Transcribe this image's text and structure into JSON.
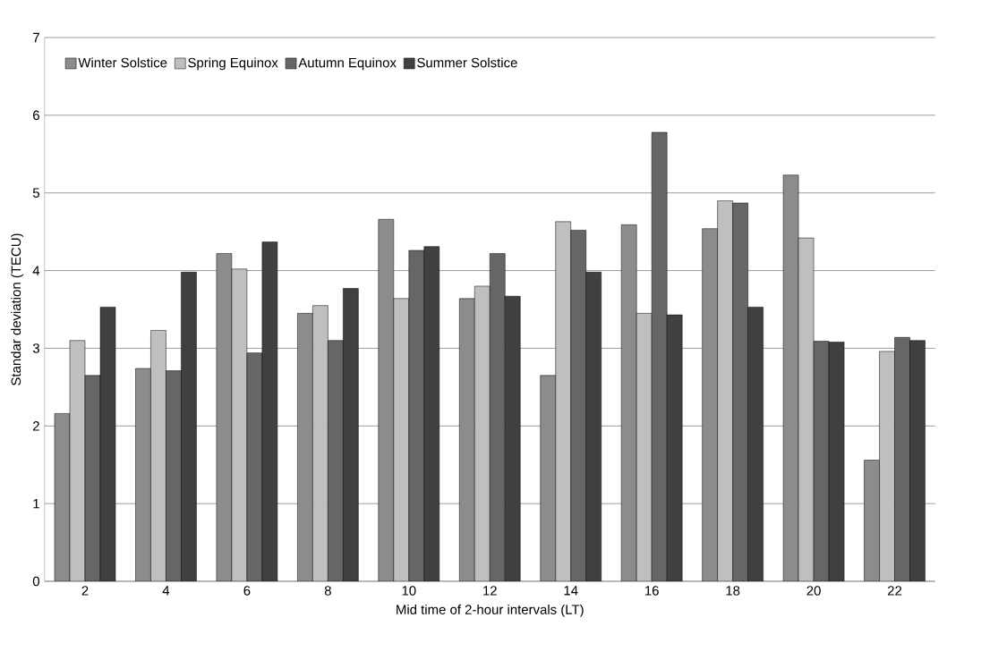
{
  "chart_data": {
    "type": "bar",
    "xlabel": "Mid time of 2-hour intervals (LT)",
    "ylabel": "Standar deviation (TECU)",
    "categories": [
      "2",
      "4",
      "6",
      "8",
      "10",
      "12",
      "14",
      "16",
      "18",
      "20",
      "22"
    ],
    "series": [
      {
        "name": "Winter Solstice",
        "color": "#8c8c8c",
        "values": [
          2.16,
          2.74,
          4.22,
          3.45,
          4.66,
          3.64,
          2.65,
          4.59,
          4.54,
          5.23,
          1.56
        ]
      },
      {
        "name": "Spring Equinox",
        "color": "#bfbfbf",
        "values": [
          3.1,
          3.23,
          4.02,
          3.55,
          3.64,
          3.8,
          4.63,
          3.45,
          4.9,
          4.42,
          2.96
        ]
      },
      {
        "name": "Autumn Equinox",
        "color": "#666666",
        "values": [
          2.65,
          2.71,
          2.94,
          3.1,
          4.26,
          4.22,
          4.52,
          5.78,
          4.87,
          3.09,
          3.14
        ]
      },
      {
        "name": "Summer Solstice",
        "color": "#404040",
        "values": [
          3.53,
          3.98,
          4.37,
          3.77,
          4.31,
          3.67,
          3.98,
          3.43,
          3.53,
          3.08,
          3.1
        ]
      }
    ],
    "ylim": [
      0,
      7
    ],
    "yticks": [
      0,
      1,
      2,
      3,
      4,
      5,
      6,
      7
    ],
    "grid": "y",
    "legend": "top left"
  }
}
